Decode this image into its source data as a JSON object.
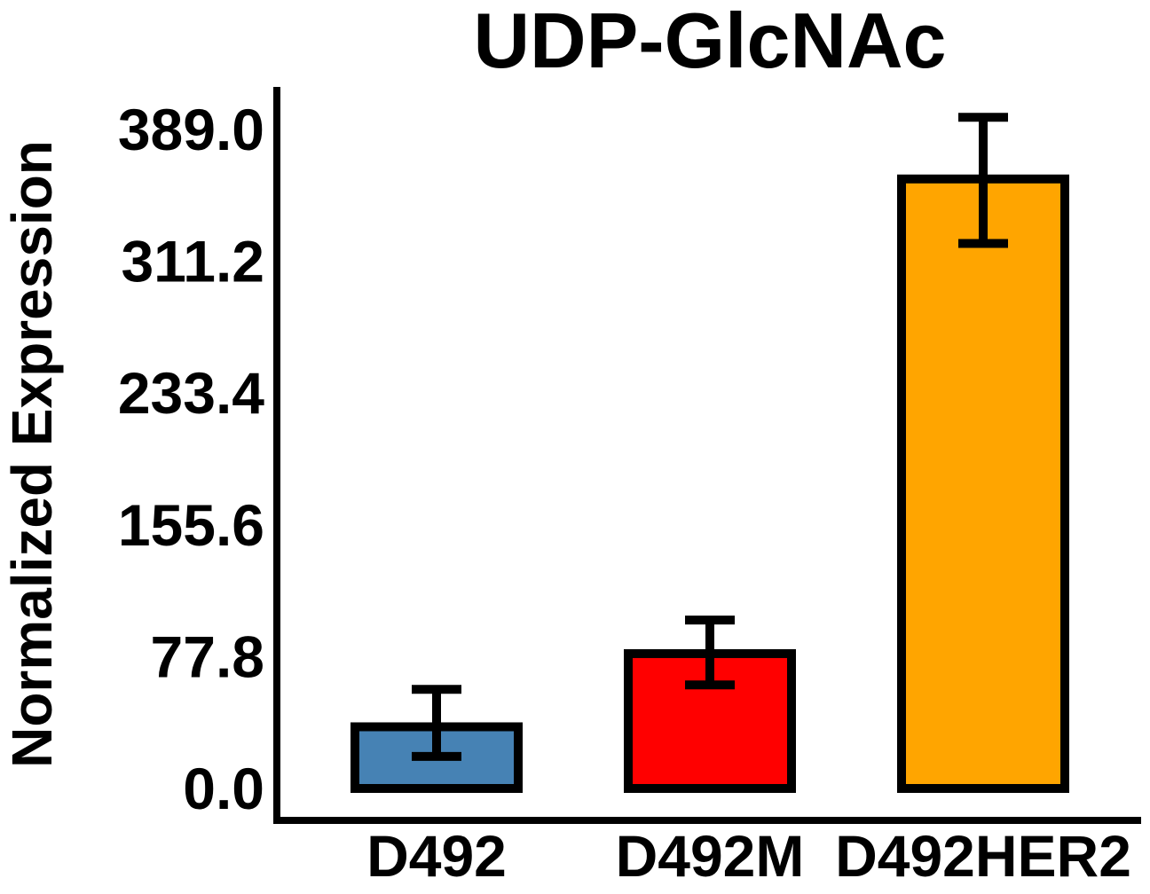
{
  "chart_data": {
    "type": "bar",
    "title": "UDP-GlcNAc",
    "xlabel": "",
    "ylabel": "Normalized Expression",
    "categories": [
      "D492",
      "D492M",
      "D492HER2"
    ],
    "values": [
      36.4,
      79.6,
      359.8
    ],
    "error": [
      {
        "lower": 18.9,
        "upper": 58.5
      },
      {
        "lower": 61.1,
        "upper": 99.4
      },
      {
        "lower": 321.7,
        "upper": 396.2
      }
    ],
    "colors": [
      "#4682B4",
      "#FF0000",
      "#FFA500"
    ],
    "yticks": [
      "0.0",
      "77.8",
      "155.6",
      "233.4",
      "311.2",
      "389.0"
    ],
    "ylim": [
      0,
      389.0
    ],
    "grid": false,
    "legend": "none"
  }
}
